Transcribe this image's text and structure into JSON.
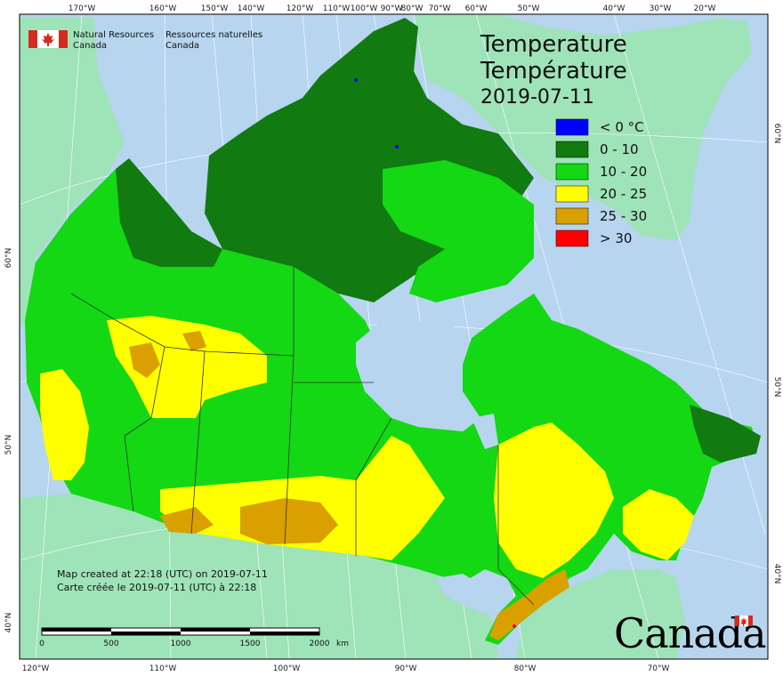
{
  "header": {
    "agency_en_line1": "Natural Resources",
    "agency_en_line2": "Canada",
    "agency_fr_line1": "Ressources naturelles",
    "agency_fr_line2": "Canada"
  },
  "title": {
    "line1": "Temperature",
    "line2": "Température",
    "date": "2019-07-11"
  },
  "legend": [
    {
      "label": "< 0 °C",
      "color": "#0000ff"
    },
    {
      "label": "0 - 10",
      "color": "#117a11"
    },
    {
      "label": "10 - 20",
      "color": "#13d813"
    },
    {
      "label": "20 - 25",
      "color": "#ffff00"
    },
    {
      "label": "25 - 30",
      "color": "#d9a000"
    },
    {
      "label": "> 30",
      "color": "#ff0000"
    }
  ],
  "colors": {
    "ocean": "#b7d5ee",
    "foreign_land": "#9fe3b9",
    "graticule": "#ffffff",
    "border": "#333333"
  },
  "top_ticks": [
    "170°W",
    "160°W",
    "150°W",
    "140°W",
    "120°W",
    "110°W",
    "100°W",
    "90°W",
    "80°W",
    "70°W",
    "60°W",
    "50°W",
    "40°W",
    "30°W",
    "20°W"
  ],
  "bottom_ticks": [
    "120°W",
    "110°W",
    "100°W",
    "90°W",
    "80°W",
    "70°W"
  ],
  "left_ticks": [
    "60°N",
    "50°N",
    "40°N"
  ],
  "right_ticks": [
    "60°N",
    "50°N",
    "40°N"
  ],
  "note": {
    "line_en": "Map created at 22:18 (UTC) on 2019-07-11",
    "line_fr": "Carte créée le 2019-07-11 (UTC) à 22:18"
  },
  "scale_bar": {
    "labels": [
      "0",
      "500",
      "1000",
      "1500",
      "2000"
    ],
    "unit": "km"
  },
  "wordmark": "Canada"
}
